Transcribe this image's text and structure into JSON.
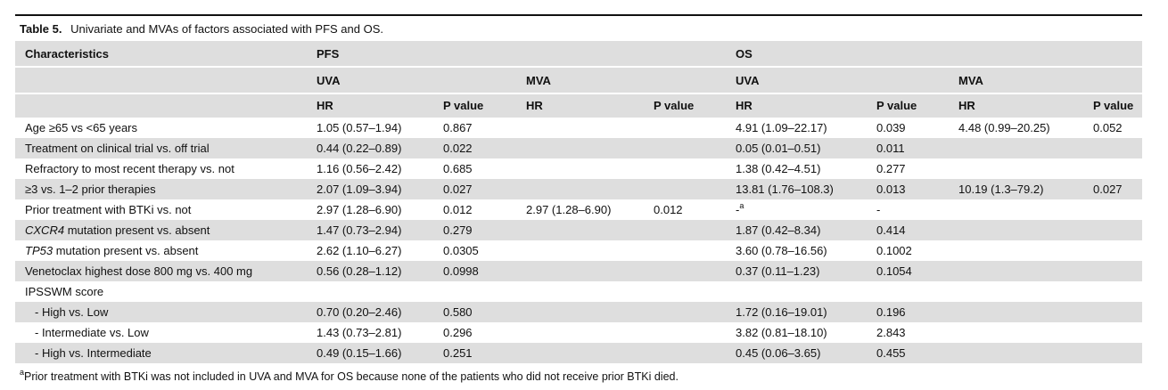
{
  "caption": {
    "label": "Table 5.",
    "text": "Univariate and MVAs of factors associated with PFS and OS."
  },
  "header": {
    "characteristics": "Characteristics",
    "pfs": "PFS",
    "os": "OS",
    "uva": "UVA",
    "mva": "MVA",
    "hr": "HR",
    "p_value": "P value"
  },
  "rows": [
    {
      "label": "Age ≥65 vs <65 years",
      "pfs_uva_hr": "1.05 (0.57–1.94)",
      "pfs_uva_p": "0.867",
      "pfs_mva_hr": "",
      "pfs_mva_p": "",
      "os_uva_hr": "4.91 (1.09–22.17)",
      "os_uva_p": "0.039",
      "os_mva_hr": "4.48 (0.99–20.25)",
      "os_mva_p": "0.052"
    },
    {
      "label": "Treatment on clinical trial vs. off trial",
      "pfs_uva_hr": "0.44 (0.22–0.89)",
      "pfs_uva_p": "0.022",
      "pfs_mva_hr": "",
      "pfs_mva_p": "",
      "os_uva_hr": "0.05 (0.01–0.51)",
      "os_uva_p": "0.011",
      "os_mva_hr": "",
      "os_mva_p": ""
    },
    {
      "label": "Refractory to most recent therapy vs. not",
      "pfs_uva_hr": "1.16 (0.56–2.42)",
      "pfs_uva_p": "0.685",
      "pfs_mva_hr": "",
      "pfs_mva_p": "",
      "os_uva_hr": "1.38 (0.42–4.51)",
      "os_uva_p": "0.277",
      "os_mva_hr": "",
      "os_mva_p": ""
    },
    {
      "label": "≥3 vs. 1–2 prior therapies",
      "pfs_uva_hr": "2.07 (1.09–3.94)",
      "pfs_uva_p": "0.027",
      "pfs_mva_hr": "",
      "pfs_mva_p": "",
      "os_uva_hr": "13.81 (1.76–108.3)",
      "os_uva_p": "0.013",
      "os_mva_hr": "10.19 (1.3–79.2)",
      "os_mva_p": "0.027"
    },
    {
      "label": "Prior treatment with BTKi vs. not",
      "pfs_uva_hr": "2.97 (1.28–6.90)",
      "pfs_uva_p": "0.012",
      "pfs_mva_hr": "2.97 (1.28–6.90)",
      "pfs_mva_p": "0.012",
      "os_uva_hr": "-",
      "os_uva_hr_sup": "a",
      "os_uva_p": "-",
      "os_mva_hr": "",
      "os_mva_p": ""
    },
    {
      "label_italic": "CXCR4",
      "label": " mutation present vs. absent",
      "pfs_uva_hr": "1.47 (0.73–2.94)",
      "pfs_uva_p": "0.279",
      "pfs_mva_hr": "",
      "pfs_mva_p": "",
      "os_uva_hr": "1.87 (0.42–8.34)",
      "os_uva_p": "0.414",
      "os_mva_hr": "",
      "os_mva_p": ""
    },
    {
      "label_italic": "TP53",
      "label": " mutation present vs. absent",
      "pfs_uva_hr": "2.62 (1.10–6.27)",
      "pfs_uva_p": "0.0305",
      "pfs_mva_hr": "",
      "pfs_mva_p": "",
      "os_uva_hr": "3.60 (0.78–16.56)",
      "os_uva_p": "0.1002",
      "os_mva_hr": "",
      "os_mva_p": ""
    },
    {
      "label": "Venetoclax highest dose 800 mg vs. 400 mg",
      "pfs_uva_hr": "0.56 (0.28–1.12)",
      "pfs_uva_p": "0.0998",
      "pfs_mva_hr": "",
      "pfs_mva_p": "",
      "os_uva_hr": "0.37 (0.11–1.23)",
      "os_uva_p": "0.1054",
      "os_mva_hr": "",
      "os_mva_p": ""
    },
    {
      "label": "IPSSWM score",
      "pfs_uva_hr": "",
      "pfs_uva_p": "",
      "pfs_mva_hr": "",
      "pfs_mva_p": "",
      "os_uva_hr": "",
      "os_uva_p": "",
      "os_mva_hr": "",
      "os_mva_p": ""
    },
    {
      "label": "- High vs. Low",
      "indent": true,
      "pfs_uva_hr": "0.70 (0.20–2.46)",
      "pfs_uva_p": "0.580",
      "pfs_mva_hr": "",
      "pfs_mva_p": "",
      "os_uva_hr": "1.72 (0.16–19.01)",
      "os_uva_p": "0.196",
      "os_mva_hr": "",
      "os_mva_p": ""
    },
    {
      "label": "- Intermediate vs. Low",
      "indent": true,
      "pfs_uva_hr": "1.43 (0.73–2.81)",
      "pfs_uva_p": "0.296",
      "pfs_mva_hr": "",
      "pfs_mva_p": "",
      "os_uva_hr": "3.82 (0.81–18.10)",
      "os_uva_p": "2.843",
      "os_mva_hr": "",
      "os_mva_p": ""
    },
    {
      "label": "- High vs. Intermediate",
      "indent": true,
      "pfs_uva_hr": "0.49 (0.15–1.66)",
      "pfs_uva_p": "0.251",
      "pfs_mva_hr": "",
      "pfs_mva_p": "",
      "os_uva_hr": "0.45 (0.06–3.65)",
      "os_uva_p": "0.455",
      "os_mva_hr": "",
      "os_mva_p": ""
    }
  ],
  "footnote": {
    "marker": "a",
    "text": "Prior treatment with BTKi was not included in UVA and MVA for OS because none of the patients who did not receive prior BTKi died."
  },
  "colors": {
    "header_bg": "#dedede",
    "rule": "#111111",
    "text": "#111111"
  }
}
